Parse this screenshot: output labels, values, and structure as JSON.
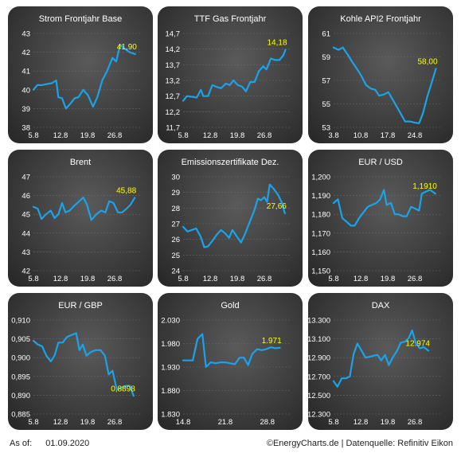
{
  "footer": {
    "as_of_label": "As of:",
    "as_of_date": "01.09.2020",
    "source": "©EnergyCharts.de | Datenquelle: Refinitiv Eikon"
  },
  "colors": {
    "line": "#1aa3e8",
    "last_value": "#ffff00",
    "text": "#ffffff",
    "grid": "#6a6a6a"
  },
  "chart_data": [
    {
      "type": "line",
      "title": "Strom Frontjahr Base",
      "y_ticks": [
        "43",
        "42",
        "41",
        "40",
        "39",
        "38"
      ],
      "ylim": [
        38,
        43
      ],
      "x_ticks": [
        {
          "label": "5.8",
          "x": 0
        },
        {
          "label": "12.8",
          "x": 5
        },
        {
          "label": "19.8",
          "x": 10
        },
        {
          "label": "26.8",
          "x": 15
        }
      ],
      "xlim": [
        0,
        20
      ],
      "last_value": "41,90",
      "values": [
        [
          0,
          40.0
        ],
        [
          0.7,
          40.25
        ],
        [
          1.5,
          40.25
        ],
        [
          2.4,
          40.3
        ],
        [
          3.4,
          40.35
        ],
        [
          4.2,
          40.5
        ],
        [
          4.6,
          39.6
        ],
        [
          5.3,
          39.55
        ],
        [
          6,
          39.0
        ],
        [
          6.8,
          39.25
        ],
        [
          7.6,
          39.55
        ],
        [
          8.3,
          39.6
        ],
        [
          9.2,
          40.0
        ],
        [
          10.1,
          39.7
        ],
        [
          11,
          39.1
        ],
        [
          11.8,
          39.6
        ],
        [
          12.7,
          40.5
        ],
        [
          13.6,
          41.0
        ],
        [
          14.6,
          41.7
        ],
        [
          15.3,
          41.5
        ],
        [
          16.0,
          42.4
        ],
        [
          16.8,
          42.2
        ],
        [
          17.8,
          42.0
        ],
        [
          18.8,
          41.9
        ]
      ]
    },
    {
      "type": "line",
      "title": "TTF Gas Frontjahr",
      "y_ticks": [
        "14,7",
        "14,2",
        "13,7",
        "13,2",
        "12,7",
        "12,2",
        "11,7"
      ],
      "ylim": [
        11.7,
        14.7
      ],
      "x_ticks": [
        {
          "label": "5.8",
          "x": 0
        },
        {
          "label": "12.8",
          "x": 5
        },
        {
          "label": "19.8",
          "x": 10
        },
        {
          "label": "26.8",
          "x": 15
        }
      ],
      "xlim": [
        0,
        20
      ],
      "last_value": "14,18",
      "values": [
        [
          0,
          12.55
        ],
        [
          0.7,
          12.7
        ],
        [
          1.6,
          12.68
        ],
        [
          2.5,
          12.65
        ],
        [
          3.3,
          12.9
        ],
        [
          3.7,
          12.7
        ],
        [
          4.6,
          12.7
        ],
        [
          5.4,
          13.05
        ],
        [
          6.1,
          13.0
        ],
        [
          7.0,
          12.95
        ],
        [
          7.9,
          13.1
        ],
        [
          8.6,
          13.05
        ],
        [
          9.3,
          13.2
        ],
        [
          10.1,
          13.05
        ],
        [
          10.9,
          13.0
        ],
        [
          11.6,
          12.85
        ],
        [
          12.4,
          13.15
        ],
        [
          13.2,
          13.15
        ],
        [
          14.0,
          13.5
        ],
        [
          14.8,
          13.65
        ],
        [
          15.4,
          13.55
        ],
        [
          16.2,
          13.9
        ],
        [
          17.0,
          13.85
        ],
        [
          17.8,
          13.85
        ],
        [
          18.5,
          14.0
        ],
        [
          18.9,
          14.18
        ]
      ]
    },
    {
      "type": "line",
      "title": "Kohle API2 Frontjahr",
      "y_ticks": [
        "61",
        "59",
        "57",
        "55",
        "53"
      ],
      "ylim": [
        53,
        61
      ],
      "x_ticks": [
        {
          "label": "3.8",
          "x": 0
        },
        {
          "label": "10.8",
          "x": 5
        },
        {
          "label": "17.8",
          "x": 10
        },
        {
          "label": "24.8",
          "x": 15
        }
      ],
      "xlim": [
        0,
        20
      ],
      "last_value": "58,00",
      "values": [
        [
          0,
          59.8
        ],
        [
          0.9,
          59.6
        ],
        [
          1.7,
          59.8
        ],
        [
          2.6,
          59.2
        ],
        [
          3.4,
          58.6
        ],
        [
          4.3,
          58.0
        ],
        [
          5.1,
          57.4
        ],
        [
          6.0,
          56.6
        ],
        [
          6.9,
          56.3
        ],
        [
          7.7,
          56.2
        ],
        [
          8.4,
          55.7
        ],
        [
          9.3,
          55.8
        ],
        [
          10.1,
          56.0
        ],
        [
          11.0,
          55.3
        ],
        [
          12.0,
          54.5
        ],
        [
          13.2,
          53.5
        ],
        [
          14.1,
          53.5
        ],
        [
          15.0,
          53.4
        ],
        [
          15.8,
          53.35
        ],
        [
          16.5,
          54.2
        ],
        [
          17.3,
          55.6
        ],
        [
          18.1,
          56.8
        ],
        [
          18.9,
          58.0
        ]
      ]
    },
    {
      "type": "line",
      "title": "Brent",
      "y_ticks": [
        "47",
        "46",
        "45",
        "44",
        "43",
        "42"
      ],
      "ylim": [
        42,
        47
      ],
      "x_ticks": [
        {
          "label": "5.8",
          "x": 0
        },
        {
          "label": "12.8",
          "x": 5
        },
        {
          "label": "19.8",
          "x": 10
        },
        {
          "label": "26.8",
          "x": 15
        }
      ],
      "xlim": [
        0,
        20
      ],
      "last_value": "45,88",
      "values": [
        [
          0,
          45.4
        ],
        [
          0.8,
          45.3
        ],
        [
          1.5,
          44.75
        ],
        [
          2.3,
          45.0
        ],
        [
          3.2,
          45.2
        ],
        [
          3.9,
          44.8
        ],
        [
          4.6,
          45.0
        ],
        [
          5.3,
          45.6
        ],
        [
          5.9,
          45.1
        ],
        [
          6.7,
          45.2
        ],
        [
          7.5,
          45.45
        ],
        [
          8.3,
          45.65
        ],
        [
          9.2,
          45.9
        ],
        [
          9.9,
          45.5
        ],
        [
          10.7,
          44.7
        ],
        [
          11.6,
          45.0
        ],
        [
          12.5,
          45.2
        ],
        [
          13.3,
          45.1
        ],
        [
          14.0,
          45.7
        ],
        [
          14.8,
          45.6
        ],
        [
          15.6,
          45.1
        ],
        [
          16.4,
          45.1
        ],
        [
          17.2,
          45.3
        ],
        [
          17.9,
          45.5
        ],
        [
          18.7,
          45.88
        ]
      ]
    },
    {
      "type": "line",
      "title": "Emissionszertifikate Dez.",
      "y_ticks": [
        "30",
        "29",
        "28",
        "27",
        "26",
        "25",
        "24"
      ],
      "ylim": [
        24,
        30
      ],
      "x_ticks": [
        {
          "label": "5.8",
          "x": 0
        },
        {
          "label": "12.8",
          "x": 5
        },
        {
          "label": "19.8",
          "x": 10
        },
        {
          "label": "26.8",
          "x": 15
        }
      ],
      "xlim": [
        0,
        20
      ],
      "last_value": "27,66",
      "values": [
        [
          0,
          26.8
        ],
        [
          0.8,
          26.5
        ],
        [
          1.6,
          26.6
        ],
        [
          2.4,
          26.7
        ],
        [
          3.2,
          26.2
        ],
        [
          3.9,
          25.5
        ],
        [
          4.6,
          25.55
        ],
        [
          5.4,
          25.9
        ],
        [
          6.2,
          26.3
        ],
        [
          7.0,
          26.6
        ],
        [
          7.7,
          26.4
        ],
        [
          8.5,
          26.1
        ],
        [
          9.1,
          26.6
        ],
        [
          9.9,
          26.2
        ],
        [
          10.7,
          25.8
        ],
        [
          11.5,
          26.4
        ],
        [
          12.4,
          27.2
        ],
        [
          13.2,
          27.9
        ],
        [
          13.8,
          28.6
        ],
        [
          14.4,
          28.5
        ],
        [
          15.0,
          28.7
        ],
        [
          15.5,
          28.4
        ],
        [
          16.0,
          29.5
        ],
        [
          16.8,
          29.2
        ],
        [
          17.6,
          28.8
        ],
        [
          18.3,
          28.3
        ],
        [
          18.8,
          27.66
        ]
      ]
    },
    {
      "type": "line",
      "title": "EUR / USD",
      "y_ticks": [
        "1,200",
        "1,190",
        "1,180",
        "1,170",
        "1,160",
        "1,150"
      ],
      "ylim": [
        1.15,
        1.2
      ],
      "x_ticks": [
        {
          "label": "5.8",
          "x": 0
        },
        {
          "label": "12.8",
          "x": 5
        },
        {
          "label": "19.8",
          "x": 10
        },
        {
          "label": "26.8",
          "x": 15
        }
      ],
      "xlim": [
        0,
        20
      ],
      "last_value": "1,1910",
      "values": [
        [
          0,
          1.186
        ],
        [
          0.8,
          1.188
        ],
        [
          1.6,
          1.178
        ],
        [
          2.4,
          1.176
        ],
        [
          3.2,
          1.174
        ],
        [
          3.9,
          1.174
        ],
        [
          4.7,
          1.178
        ],
        [
          5.5,
          1.181
        ],
        [
          6.3,
          1.184
        ],
        [
          7.1,
          1.185
        ],
        [
          7.9,
          1.186
        ],
        [
          8.6,
          1.188
        ],
        [
          9.3,
          1.193
        ],
        [
          9.8,
          1.185
        ],
        [
          10.6,
          1.186
        ],
        [
          11.3,
          1.18
        ],
        [
          12.0,
          1.18
        ],
        [
          12.8,
          1.179
        ],
        [
          13.5,
          1.179
        ],
        [
          14.3,
          1.184
        ],
        [
          15.1,
          1.183
        ],
        [
          15.8,
          1.182
        ],
        [
          16.3,
          1.191
        ],
        [
          17.0,
          1.192
        ],
        [
          17.8,
          1.193
        ],
        [
          18.8,
          1.191
        ]
      ]
    },
    {
      "type": "line",
      "title": "EUR / GBP",
      "y_ticks": [
        "0,910",
        "0,905",
        "0,900",
        "0,895",
        "0,890",
        "0,885"
      ],
      "ylim": [
        0.885,
        0.91
      ],
      "x_ticks": [
        {
          "label": "5.8",
          "x": 0
        },
        {
          "label": "12.8",
          "x": 5
        },
        {
          "label": "19.8",
          "x": 10
        },
        {
          "label": "26.8",
          "x": 15
        }
      ],
      "xlim": [
        0,
        20
      ],
      "last_value": "0,8898",
      "values": [
        [
          0,
          0.9045
        ],
        [
          0.8,
          0.9035
        ],
        [
          1.6,
          0.903
        ],
        [
          2.4,
          0.9005
        ],
        [
          3.2,
          0.899
        ],
        [
          3.9,
          0.9005
        ],
        [
          4.6,
          0.904
        ],
        [
          5.4,
          0.904
        ],
        [
          6.2,
          0.9055
        ],
        [
          7.0,
          0.906
        ],
        [
          7.9,
          0.9065
        ],
        [
          8.5,
          0.902
        ],
        [
          9.1,
          0.9035
        ],
        [
          9.8,
          0.9005
        ],
        [
          10.6,
          0.9015
        ],
        [
          11.5,
          0.902
        ],
        [
          12.4,
          0.902
        ],
        [
          13.2,
          0.9005
        ],
        [
          13.9,
          0.8955
        ],
        [
          14.6,
          0.8965
        ],
        [
          15.4,
          0.8915
        ],
        [
          16.3,
          0.892
        ],
        [
          17.1,
          0.8925
        ],
        [
          17.8,
          0.8925
        ],
        [
          18.5,
          0.8898
        ]
      ]
    },
    {
      "type": "line",
      "title": "Gold",
      "y_ticks": [
        "2.030",
        "1.980",
        "1.930",
        "1.880",
        "1.830"
      ],
      "ylim": [
        1830,
        2030
      ],
      "x_ticks": [
        {
          "label": "14.8",
          "x": 0
        },
        {
          "label": "21.8",
          "x": 7
        },
        {
          "label": "28.8",
          "x": 14
        }
      ],
      "xlim": [
        0,
        18
      ],
      "last_value": "1.971",
      "values": [
        [
          0,
          1944
        ],
        [
          0.8,
          1944
        ],
        [
          1.6,
          1944
        ],
        [
          2.4,
          1990
        ],
        [
          3.2,
          2000
        ],
        [
          3.8,
          1930
        ],
        [
          4.6,
          1940
        ],
        [
          5.4,
          1938
        ],
        [
          6.2,
          1940
        ],
        [
          7.0,
          1940
        ],
        [
          7.8,
          1938
        ],
        [
          8.6,
          1936
        ],
        [
          9.4,
          1950
        ],
        [
          10.1,
          1950
        ],
        [
          10.8,
          1934
        ],
        [
          11.5,
          1958
        ],
        [
          12.3,
          1968
        ],
        [
          13.1,
          1966
        ],
        [
          13.8,
          1968
        ],
        [
          14.6,
          1972
        ],
        [
          15.3,
          1970
        ],
        [
          16.1,
          1971
        ]
      ]
    },
    {
      "type": "line",
      "title": "DAX",
      "y_ticks": [
        "13.300",
        "13.100",
        "12.900",
        "12.700",
        "12.500",
        "12.300"
      ],
      "ylim": [
        12300,
        13300
      ],
      "x_ticks": [
        {
          "label": "5.8",
          "x": 0
        },
        {
          "label": "12.8",
          "x": 5
        },
        {
          "label": "19.8",
          "x": 10
        },
        {
          "label": "26.8",
          "x": 15
        }
      ],
      "xlim": [
        0,
        20
      ],
      "last_value": "12.974",
      "values": [
        [
          0,
          12650
        ],
        [
          0.7,
          12590
        ],
        [
          1.5,
          12680
        ],
        [
          2.3,
          12680
        ],
        [
          3.0,
          12700
        ],
        [
          3.7,
          12940
        ],
        [
          4.4,
          13050
        ],
        [
          5.2,
          12970
        ],
        [
          5.9,
          12900
        ],
        [
          6.7,
          12910
        ],
        [
          7.4,
          12920
        ],
        [
          8.1,
          12930
        ],
        [
          8.8,
          12870
        ],
        [
          9.5,
          12930
        ],
        [
          10.2,
          12820
        ],
        [
          10.9,
          12900
        ],
        [
          11.7,
          12970
        ],
        [
          12.4,
          13060
        ],
        [
          13.2,
          13070
        ],
        [
          13.9,
          13110
        ],
        [
          14.5,
          13190
        ],
        [
          15.2,
          13050
        ],
        [
          15.9,
          13000
        ],
        [
          16.7,
          13010
        ],
        [
          17.5,
          12974
        ]
      ]
    }
  ]
}
